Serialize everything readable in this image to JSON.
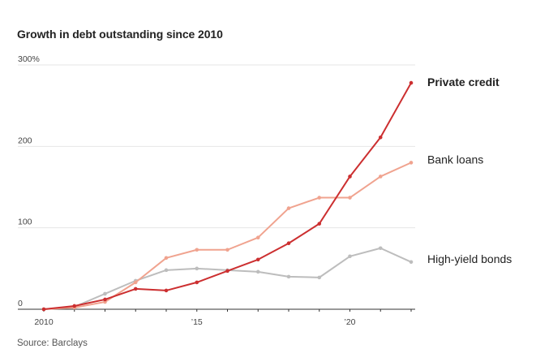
{
  "chart_data": {
    "type": "line",
    "title": "Growth in debt outstanding since 2010",
    "source": "Source: Barclays",
    "x": [
      2010,
      2011,
      2012,
      2013,
      2014,
      2015,
      2016,
      2017,
      2018,
      2019,
      2020,
      2021,
      2022
    ],
    "xlim": [
      2010,
      2022
    ],
    "ylim": [
      0,
      300
    ],
    "y_ticks": [
      {
        "value": 0,
        "label": "0"
      },
      {
        "value": 100,
        "label": "100"
      },
      {
        "value": 200,
        "label": "200"
      },
      {
        "value": 300,
        "label": "300%"
      }
    ],
    "x_ticks": [
      {
        "value": 2010,
        "label": "2010"
      },
      {
        "value": 2015,
        "label": "’15"
      },
      {
        "value": 2020,
        "label": "’20"
      }
    ],
    "grid": true,
    "legend": "direct labels at line ends (right)",
    "series": [
      {
        "name": "High-yield bonds",
        "color": "#bdbdbd",
        "bold": false,
        "values": [
          0,
          3,
          19,
          35,
          48,
          50,
          48,
          46,
          40,
          39,
          65,
          75,
          58
        ]
      },
      {
        "name": "Bank loans",
        "color": "#f0a38f",
        "bold": false,
        "values": [
          0,
          2,
          9,
          33,
          63,
          73,
          73,
          88,
          124,
          137,
          137,
          163,
          180
        ]
      },
      {
        "name": "Private credit",
        "color": "#cc2f30",
        "bold": true,
        "values": [
          0,
          4,
          12,
          25,
          23,
          33,
          47,
          61,
          81,
          105,
          163,
          211,
          278
        ]
      }
    ]
  }
}
